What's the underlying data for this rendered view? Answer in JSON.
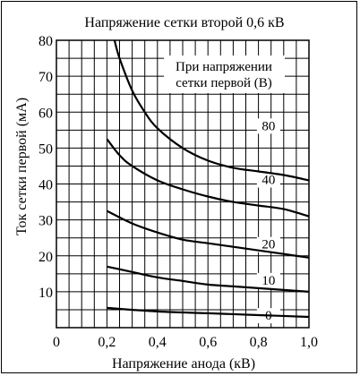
{
  "chart_data": {
    "type": "line",
    "title": "Напряжение сетки второй 0,6 кВ",
    "xlabel": "Напряжение анода (кВ)",
    "ylabel": "Ток сетки первой (мА)",
    "xlim": [
      0,
      1.0
    ],
    "ylim": [
      0,
      80
    ],
    "x_ticks": [
      "0",
      "0,2",
      "0,4",
      "0,6",
      "0,8",
      "1,0"
    ],
    "y_ticks": [
      "10",
      "20",
      "30",
      "40",
      "50",
      "60",
      "70",
      "80"
    ],
    "grid": true,
    "legend_title": [
      "При напряжении",
      "сетки первой (В)"
    ],
    "series": [
      {
        "name": "80",
        "x": [
          0.23,
          0.25,
          0.3,
          0.35,
          0.4,
          0.5,
          0.6,
          0.7,
          0.8,
          0.9,
          1.0
        ],
        "y": [
          80,
          75,
          66,
          60,
          55.5,
          50,
          46.5,
          44.5,
          43.5,
          42.5,
          41
        ]
      },
      {
        "name": "40",
        "x": [
          0.2,
          0.25,
          0.3,
          0.4,
          0.5,
          0.6,
          0.7,
          0.8,
          0.9,
          1.0
        ],
        "y": [
          52.5,
          48,
          45,
          41,
          38.5,
          36.5,
          35,
          34,
          33,
          31
        ]
      },
      {
        "name": "20",
        "x": [
          0.2,
          0.3,
          0.4,
          0.5,
          0.6,
          0.7,
          0.8,
          0.9,
          1.0
        ],
        "y": [
          32.5,
          29,
          26.5,
          24.5,
          23.5,
          22.5,
          21.5,
          20.5,
          19.5
        ]
      },
      {
        "name": "10",
        "x": [
          0.2,
          0.3,
          0.4,
          0.5,
          0.6,
          0.7,
          0.8,
          0.9,
          1.0
        ],
        "y": [
          17,
          15.5,
          14,
          13,
          12,
          11.5,
          11,
          10.5,
          10
        ]
      },
      {
        "name": "0",
        "x": [
          0.2,
          0.4,
          0.6,
          0.8,
          1.0
        ],
        "y": [
          5.5,
          4.5,
          4,
          3.5,
          3
        ]
      }
    ]
  }
}
